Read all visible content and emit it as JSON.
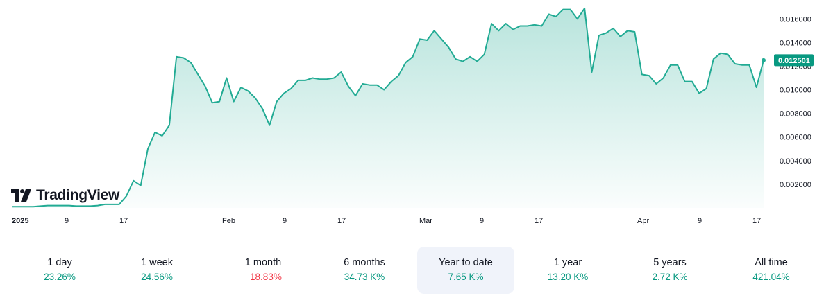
{
  "logo": {
    "text": "TradingView"
  },
  "colors": {
    "line": "#22ab94",
    "positive": "#089981",
    "negative": "#f23645",
    "last_price_bg": "#089981"
  },
  "chart_data": {
    "type": "area",
    "title": "",
    "xlabel": "",
    "ylabel": "",
    "ylim": [
      0,
      0.0176
    ],
    "grid": false,
    "y_ticks": [
      "0.016000",
      "0.014000",
      "0.012000",
      "0.010000",
      "0.008000",
      "0.006000",
      "0.004000",
      "0.002000"
    ],
    "x_ticks": [
      {
        "label": "2025",
        "bold": true
      },
      {
        "label": "9",
        "bold": false
      },
      {
        "label": "17",
        "bold": false
      },
      {
        "label": "Feb",
        "bold": false
      },
      {
        "label": "9",
        "bold": false
      },
      {
        "label": "17",
        "bold": false
      },
      {
        "label": "Mar",
        "bold": false
      },
      {
        "label": "9",
        "bold": false
      },
      {
        "label": "17",
        "bold": false
      },
      {
        "label": "Apr",
        "bold": false
      },
      {
        "label": "9",
        "bold": false
      },
      {
        "label": "17",
        "bold": false
      }
    ],
    "last_price_label": "0.012501",
    "series": [
      {
        "values": [
          0.0001,
          0.0001,
          0.0001,
          0.0001,
          0.00015,
          0.0002,
          0.0002,
          0.0002,
          0.0002,
          0.00015,
          0.00015,
          0.00015,
          0.0002,
          0.0003,
          0.0003,
          0.0003,
          0.001,
          0.0023,
          0.0019,
          0.005,
          0.0064,
          0.0061,
          0.007,
          0.0128,
          0.0127,
          0.0123,
          0.0113,
          0.0103,
          0.0089,
          0.009,
          0.011,
          0.009,
          0.0102,
          0.0099,
          0.0093,
          0.0084,
          0.007,
          0.009,
          0.0097,
          0.0101,
          0.0108,
          0.0108,
          0.011,
          0.0109,
          0.0109,
          0.011,
          0.0115,
          0.0103,
          0.0095,
          0.0105,
          0.0104,
          0.0104,
          0.01,
          0.0107,
          0.0112,
          0.0123,
          0.0128,
          0.0143,
          0.0142,
          0.015,
          0.0143,
          0.0136,
          0.0126,
          0.0124,
          0.0128,
          0.0124,
          0.013,
          0.0156,
          0.015,
          0.0156,
          0.0151,
          0.0154,
          0.0154,
          0.0155,
          0.0154,
          0.0164,
          0.0162,
          0.0168,
          0.0168,
          0.016,
          0.0169,
          0.0115,
          0.0146,
          0.0148,
          0.0152,
          0.0145,
          0.015,
          0.0149,
          0.0113,
          0.0112,
          0.0105,
          0.011,
          0.0121,
          0.0121,
          0.0107,
          0.0107,
          0.0097,
          0.0101,
          0.0126,
          0.0131,
          0.013,
          0.0122,
          0.0121,
          0.0121,
          0.0102,
          0.0125
        ]
      }
    ]
  },
  "periods": [
    {
      "label": "1 day",
      "value": "23.26%",
      "sign": "pos",
      "selected": false
    },
    {
      "label": "1 week",
      "value": "24.56%",
      "sign": "pos",
      "selected": false
    },
    {
      "label": "1 month",
      "value": "−18.83%",
      "sign": "neg",
      "selected": false
    },
    {
      "label": "6 months",
      "value": "34.73 K%",
      "sign": "pos",
      "selected": false
    },
    {
      "label": "Year to date",
      "value": "7.65 K%",
      "sign": "pos",
      "selected": true
    },
    {
      "label": "1 year",
      "value": "13.20 K%",
      "sign": "pos",
      "selected": false
    },
    {
      "label": "5 years",
      "value": "2.72 K%",
      "sign": "pos",
      "selected": false
    },
    {
      "label": "All time",
      "value": "421.04%",
      "sign": "pos",
      "selected": false
    }
  ]
}
